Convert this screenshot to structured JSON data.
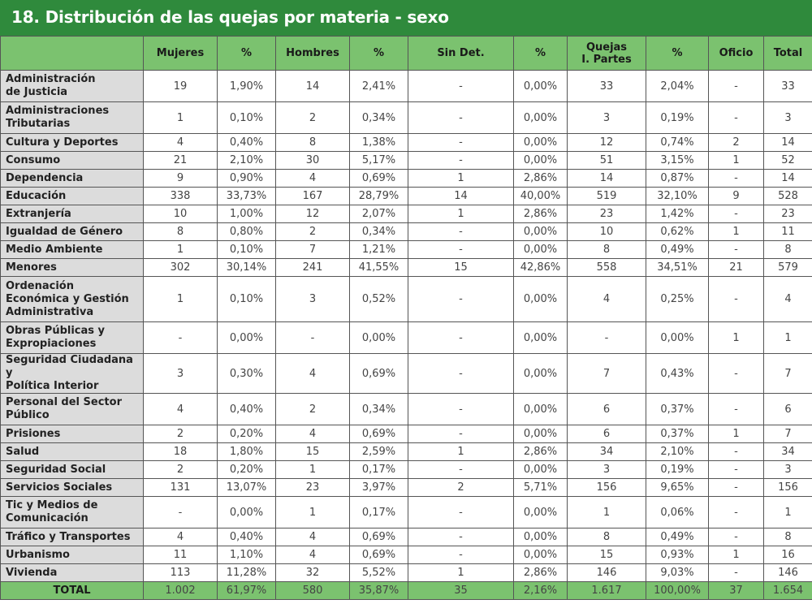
{
  "title": "18. Distribución de las quejas por materia - sexo",
  "chart_data": {
    "type": "table",
    "columns": [
      "",
      "Mujeres",
      "%",
      "Hombres",
      "%",
      "Sin Det.",
      "%",
      "Quejas I. Partes",
      "%",
      "Oficio",
      "Total"
    ],
    "header_lines": [
      [
        ""
      ],
      [
        "Mujeres"
      ],
      [
        "%"
      ],
      [
        "Hombres"
      ],
      [
        "%"
      ],
      [
        "Sin Det."
      ],
      [
        "%"
      ],
      [
        "Quejas",
        "I. Partes"
      ],
      [
        "%"
      ],
      [
        "Oficio"
      ],
      [
        "Total"
      ]
    ],
    "rows": [
      {
        "label": [
          "Administración",
          "de Justicia"
        ],
        "values": [
          "19",
          "1,90%",
          "14",
          "2,41%",
          "-",
          "0,00%",
          "33",
          "2,04%",
          "-",
          "33"
        ]
      },
      {
        "label": [
          "Administraciones",
          "Tributarias"
        ],
        "values": [
          "1",
          "0,10%",
          "2",
          "0,34%",
          "-",
          "0,00%",
          "3",
          "0,19%",
          "-",
          "3"
        ]
      },
      {
        "label": [
          "Cultura y Deportes"
        ],
        "values": [
          "4",
          "0,40%",
          "8",
          "1,38%",
          "-",
          "0,00%",
          "12",
          "0,74%",
          "2",
          "14"
        ]
      },
      {
        "label": [
          "Consumo"
        ],
        "values": [
          "21",
          "2,10%",
          "30",
          "5,17%",
          "-",
          "0,00%",
          "51",
          "3,15%",
          "1",
          "52"
        ]
      },
      {
        "label": [
          "Dependencia"
        ],
        "values": [
          "9",
          "0,90%",
          "4",
          "0,69%",
          "1",
          "2,86%",
          "14",
          "0,87%",
          "-",
          "14"
        ]
      },
      {
        "label": [
          "Educación"
        ],
        "values": [
          "338",
          "33,73%",
          "167",
          "28,79%",
          "14",
          "40,00%",
          "519",
          "32,10%",
          "9",
          "528"
        ]
      },
      {
        "label": [
          "Extranjería"
        ],
        "values": [
          "10",
          "1,00%",
          "12",
          "2,07%",
          "1",
          "2,86%",
          "23",
          "1,42%",
          "-",
          "23"
        ]
      },
      {
        "label": [
          "Igualdad de Género"
        ],
        "values": [
          "8",
          "0,80%",
          "2",
          "0,34%",
          "-",
          "0,00%",
          "10",
          "0,62%",
          "1",
          "11"
        ]
      },
      {
        "label": [
          "Medio Ambiente"
        ],
        "values": [
          "1",
          "0,10%",
          "7",
          "1,21%",
          "-",
          "0,00%",
          "8",
          "0,49%",
          "-",
          "8"
        ]
      },
      {
        "label": [
          "Menores"
        ],
        "values": [
          "302",
          "30,14%",
          "241",
          "41,55%",
          "15",
          "42,86%",
          "558",
          "34,51%",
          "21",
          "579"
        ]
      },
      {
        "label": [
          "Ordenación",
          "Económica y Gestión",
          "Administrativa"
        ],
        "values": [
          "1",
          "0,10%",
          "3",
          "0,52%",
          "-",
          "0,00%",
          "4",
          "0,25%",
          "-",
          "4"
        ]
      },
      {
        "label": [
          "Obras Públicas y",
          "Expropiaciones"
        ],
        "values": [
          "-",
          "0,00%",
          "-",
          "0,00%",
          "-",
          "0,00%",
          "-",
          "0,00%",
          "1",
          "1"
        ]
      },
      {
        "label": [
          "Seguridad Ciudadana y",
          "Política Interior"
        ],
        "values": [
          "3",
          "0,30%",
          "4",
          "0,69%",
          "-",
          "0,00%",
          "7",
          "0,43%",
          "-",
          "7"
        ]
      },
      {
        "label": [
          "Personal del Sector",
          "Público"
        ],
        "values": [
          "4",
          "0,40%",
          "2",
          "0,34%",
          "-",
          "0,00%",
          "6",
          "0,37%",
          "-",
          "6"
        ]
      },
      {
        "label": [
          "Prisiones"
        ],
        "values": [
          "2",
          "0,20%",
          "4",
          "0,69%",
          "-",
          "0,00%",
          "6",
          "0,37%",
          "1",
          "7"
        ]
      },
      {
        "label": [
          "Salud"
        ],
        "values": [
          "18",
          "1,80%",
          "15",
          "2,59%",
          "1",
          "2,86%",
          "34",
          "2,10%",
          "-",
          "34"
        ]
      },
      {
        "label": [
          "Seguridad Social"
        ],
        "values": [
          "2",
          "0,20%",
          "1",
          "0,17%",
          "-",
          "0,00%",
          "3",
          "0,19%",
          "-",
          "3"
        ]
      },
      {
        "label": [
          "Servicios Sociales"
        ],
        "values": [
          "131",
          "13,07%",
          "23",
          "3,97%",
          "2",
          "5,71%",
          "156",
          "9,65%",
          "-",
          "156"
        ]
      },
      {
        "label": [
          "Tic y Medios de",
          "Comunicación"
        ],
        "values": [
          "-",
          "0,00%",
          "1",
          "0,17%",
          "-",
          "0,00%",
          "1",
          "0,06%",
          "-",
          "1"
        ]
      },
      {
        "label": [
          "Tráfico y Transportes"
        ],
        "values": [
          "4",
          "0,40%",
          "4",
          "0,69%",
          "-",
          "0,00%",
          "8",
          "0,49%",
          "-",
          "8"
        ]
      },
      {
        "label": [
          "Urbanismo"
        ],
        "values": [
          "11",
          "1,10%",
          "4",
          "0,69%",
          "-",
          "0,00%",
          "15",
          "0,93%",
          "1",
          "16"
        ]
      },
      {
        "label": [
          "Vivienda"
        ],
        "values": [
          "113",
          "11,28%",
          "32",
          "5,52%",
          "1",
          "2,86%",
          "146",
          "9,03%",
          "-",
          "146"
        ]
      }
    ],
    "total": {
      "label": "TOTAL",
      "values": [
        "1.002",
        "61,97%",
        "580",
        "35,87%",
        "35",
        "2,16%",
        "1.617",
        "100,00%",
        "37",
        "1.654"
      ]
    }
  }
}
